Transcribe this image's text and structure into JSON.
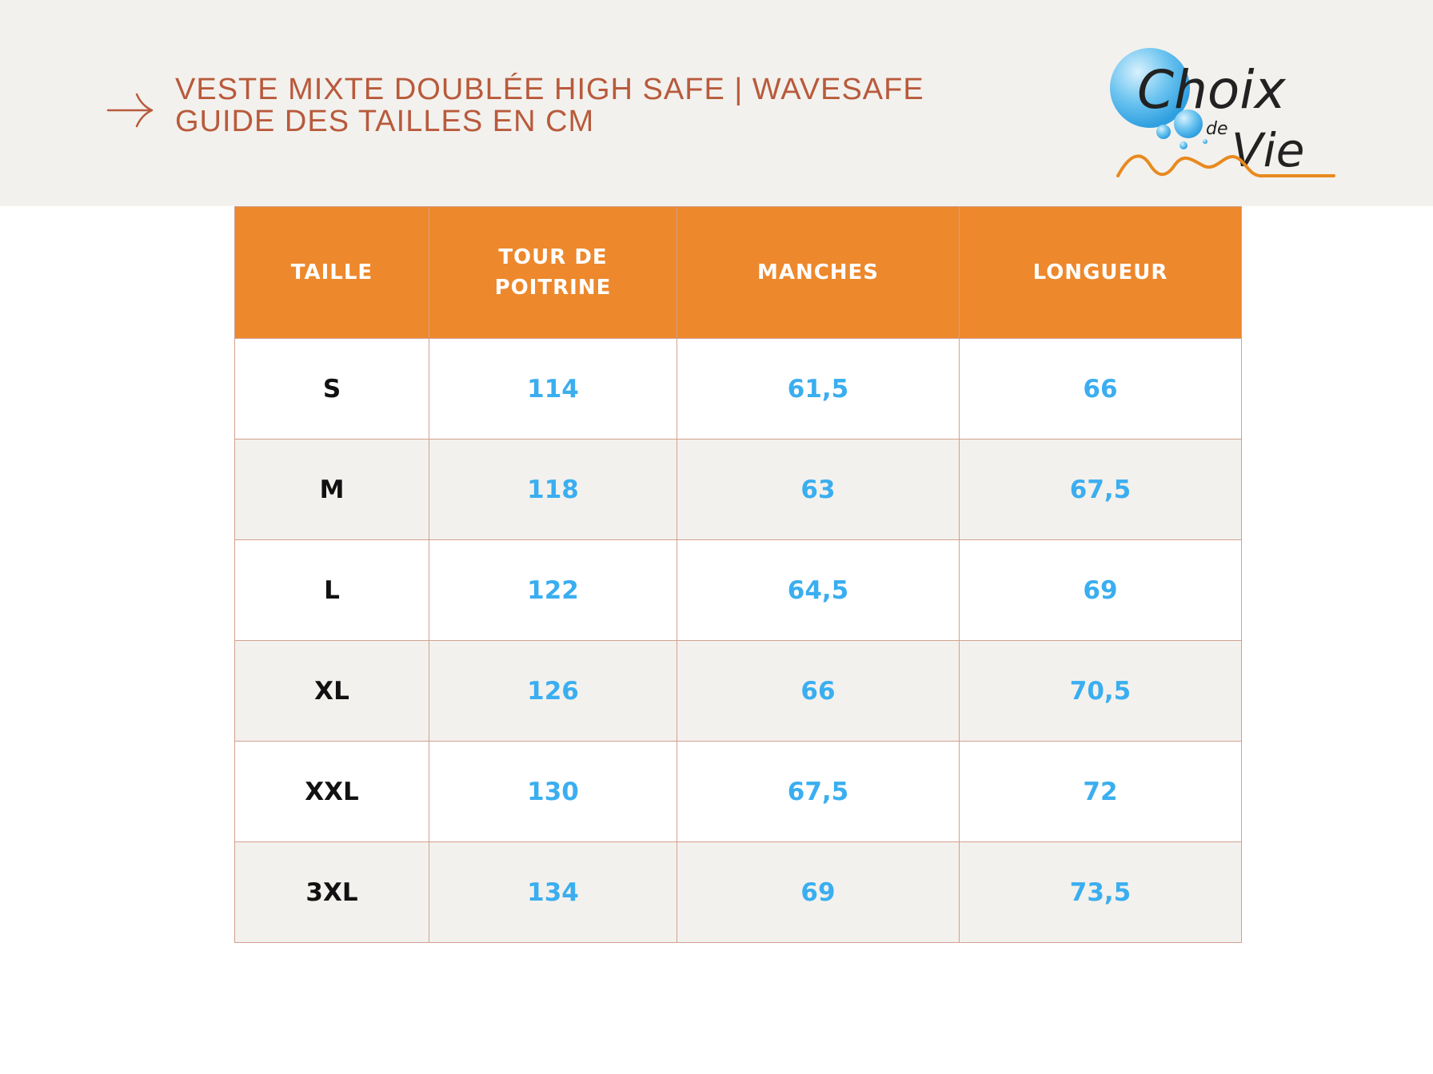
{
  "header": {
    "title_line1": "VESTE MIXTE DOUBLÉE HIGH SAFE | WAVESAFE",
    "title_line2": "GUIDE DES TAILLES EN CM",
    "arrow_icon": "arrow-right-icon"
  },
  "logo": {
    "text_choix": "Choix",
    "text_de": "de",
    "text_vie": "Vie",
    "colors": {
      "bubble": "#4fb6ec",
      "wave": "#e8891e",
      "text": "#222222"
    }
  },
  "table": {
    "columns": [
      "TAILLE",
      "TOUR DE POITRINE",
      "MANCHES",
      "LONGUEUR"
    ],
    "col2_line1": "TOUR DE",
    "col2_line2": "POITRINE",
    "rows": [
      {
        "size": "S",
        "poitrine": "114",
        "manches": "61,5",
        "longueur": "66"
      },
      {
        "size": "M",
        "poitrine": "118",
        "manches": "63",
        "longueur": "67,5"
      },
      {
        "size": "L",
        "poitrine": "122",
        "manches": "64,5",
        "longueur": "69"
      },
      {
        "size": "XL",
        "poitrine": "126",
        "manches": "66",
        "longueur": "70,5"
      },
      {
        "size": "XXL",
        "poitrine": "130",
        "manches": "67,5",
        "longueur": "72"
      },
      {
        "size": "3XL",
        "poitrine": "134",
        "manches": "69",
        "longueur": "73,5"
      }
    ]
  },
  "colors": {
    "header_bg": "#f3f1ed",
    "title_text": "#b85a3c",
    "table_header_bg": "#ed882c",
    "table_border": "#d2a190",
    "value_text": "#3aaef0",
    "size_text": "#111111",
    "stripe_bg": "#f3f1ed"
  }
}
